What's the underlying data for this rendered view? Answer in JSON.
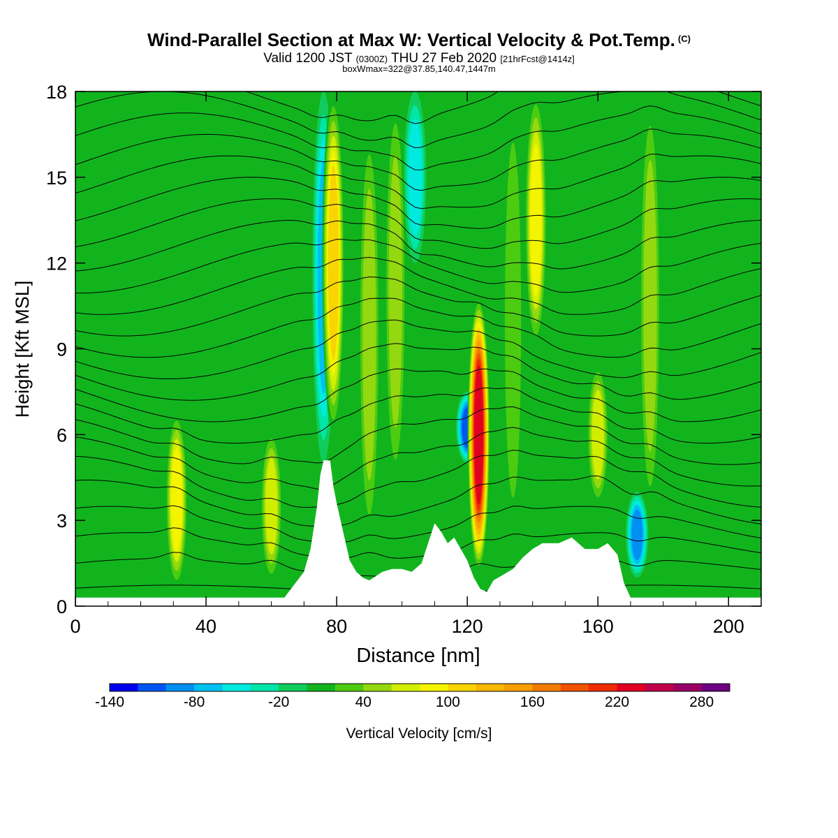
{
  "header": {
    "title": "Wind-Parallel Section at Max W: Vertical Velocity & Pot.Temp.",
    "title_mark": "(C)",
    "subtitle_valid": "Valid 1200 JST",
    "subtitle_utc": "(0300Z)",
    "subtitle_date": "THU 27 Feb 2020",
    "subtitle_fcst": "[21hrFcst@1414z]",
    "box_info": "boxWmax=322@37.85,140.47,1447m"
  },
  "chart_data": {
    "type": "heatmap",
    "title": "Wind-Parallel Section at Max W: Vertical Velocity & Pot.Temp.",
    "xlabel": "Distance [nm]",
    "ylabel": "Height [Kft MSL]",
    "xlim": [
      0,
      210
    ],
    "ylim": [
      0,
      18
    ],
    "x_ticks": [
      "0",
      "40",
      "80",
      "120",
      "160",
      "200"
    ],
    "y_ticks": [
      "0",
      "3",
      "6",
      "9",
      "12",
      "15",
      "18"
    ],
    "colorbar": {
      "label": "Vertical Velocity [cm/s]",
      "ticks": [
        "-140",
        "-80",
        "-20",
        "40",
        "100",
        "160",
        "220",
        "280"
      ],
      "levels": [
        -140,
        -120,
        -100,
        -80,
        -60,
        -40,
        -20,
        0,
        20,
        40,
        60,
        80,
        100,
        120,
        140,
        160,
        180,
        200,
        220,
        240,
        260,
        280,
        300
      ],
      "colors": [
        "#0000ee",
        "#0055f2",
        "#0090f2",
        "#00c0f0",
        "#00eae0",
        "#00e6a8",
        "#10cc5c",
        "#12b41e",
        "#4ccc10",
        "#94d810",
        "#d2ee00",
        "#f4f400",
        "#f8d400",
        "#f8b800",
        "#f89e00",
        "#f27c00",
        "#f05200",
        "#ee2a00",
        "#e00022",
        "#c00048",
        "#9a0064",
        "#6e0082"
      ]
    },
    "terrain": [
      [
        0,
        0.3
      ],
      [
        64,
        0.3
      ],
      [
        66,
        0.6
      ],
      [
        70,
        1.2
      ],
      [
        72,
        2.0
      ],
      [
        74,
        3.5
      ],
      [
        75,
        4.6
      ],
      [
        76,
        5.1
      ],
      [
        78,
        5.1
      ],
      [
        79,
        4.2
      ],
      [
        80,
        3.6
      ],
      [
        82,
        2.6
      ],
      [
        84,
        1.6
      ],
      [
        86,
        1.2
      ],
      [
        88,
        1.0
      ],
      [
        90,
        0.9
      ],
      [
        94,
        1.2
      ],
      [
        97,
        1.3
      ],
      [
        100,
        1.3
      ],
      [
        103,
        1.2
      ],
      [
        106,
        1.5
      ],
      [
        108,
        2.2
      ],
      [
        110,
        2.9
      ],
      [
        112,
        2.6
      ],
      [
        114,
        2.2
      ],
      [
        116,
        2.4
      ],
      [
        118,
        2.0
      ],
      [
        120,
        1.6
      ],
      [
        122,
        1.0
      ],
      [
        124,
        0.6
      ],
      [
        126,
        0.5
      ],
      [
        128,
        0.9
      ],
      [
        131,
        1.1
      ],
      [
        134,
        1.3
      ],
      [
        137,
        1.7
      ],
      [
        140,
        2.0
      ],
      [
        143,
        2.2
      ],
      [
        148,
        2.2
      ],
      [
        152,
        2.4
      ],
      [
        156,
        2.0
      ],
      [
        160,
        2.0
      ],
      [
        163,
        2.2
      ],
      [
        166,
        1.8
      ],
      [
        168,
        0.8
      ],
      [
        170,
        0.3
      ],
      [
        210,
        0.3
      ]
    ],
    "vertical_velocity_features": [
      {
        "x": 31,
        "z": [
          0.6,
          6.8
        ],
        "w": 100
      },
      {
        "x": 60,
        "z": [
          0.8,
          6.2
        ],
        "w": 80
      },
      {
        "x": 76,
        "z": [
          5.0,
          18
        ],
        "w": -70
      },
      {
        "x": 79,
        "z": [
          6.0,
          18
        ],
        "w": 110
      },
      {
        "x": 90,
        "z": [
          2.0,
          17
        ],
        "w": 50
      },
      {
        "x": 98,
        "z": [
          4.0,
          18
        ],
        "w": 60
      },
      {
        "x": 104,
        "z": [
          12.0,
          18
        ],
        "w": -60
      },
      {
        "x": 120,
        "z": [
          5.0,
          7.5
        ],
        "w": -110
      },
      {
        "x": 123.5,
        "z": [
          1.2,
          10.8
        ],
        "w": 240
      },
      {
        "x": 134,
        "z": [
          2.0,
          18
        ],
        "w": 40
      },
      {
        "x": 141,
        "z": [
          9.0,
          18
        ],
        "w": 100
      },
      {
        "x": 160,
        "z": [
          3.5,
          8.5
        ],
        "w": 80
      },
      {
        "x": 172,
        "z": [
          1.0,
          4.0
        ],
        "w": -100
      },
      {
        "x": 176,
        "z": [
          3.0,
          18
        ],
        "w": 60
      }
    ],
    "potential_temperature_contours": "black isentropes, roughly one every 0.75 kft"
  }
}
